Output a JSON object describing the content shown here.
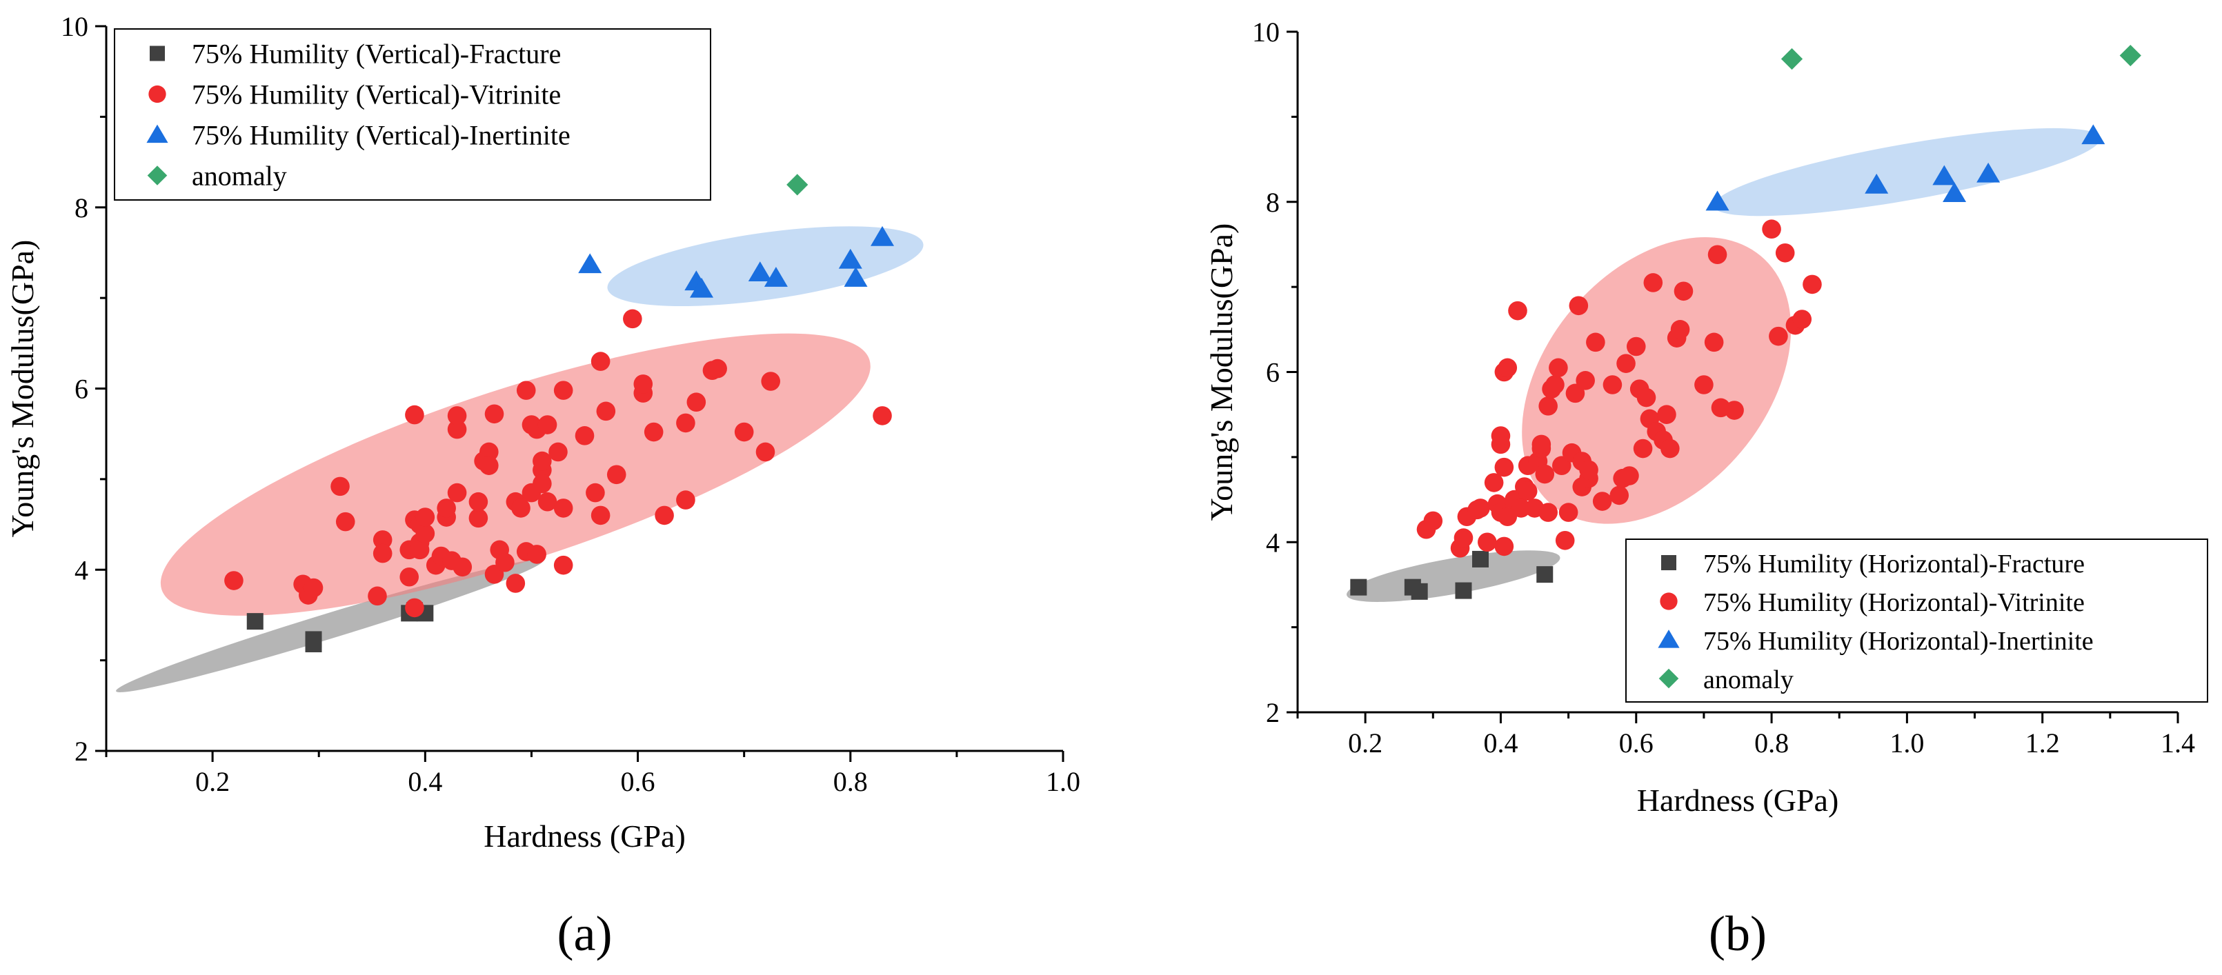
{
  "chart_data": [
    {
      "type": "scatter",
      "panel_label": "(a)",
      "xlabel": "Hardness (GPa)",
      "ylabel": "Young's Modulus(GPa)",
      "xlim": [
        0.1,
        1.0
      ],
      "ylim": [
        2,
        10
      ],
      "xticks": [
        0.2,
        0.4,
        0.6,
        0.8,
        1.0
      ],
      "xtick_labels": [
        "0.2",
        "0.4",
        "0.6",
        "0.8",
        "1.0"
      ],
      "yticks": [
        2,
        4,
        6,
        8,
        10
      ],
      "ytick_labels": [
        "2",
        "4",
        "6",
        "8",
        "10"
      ],
      "legend_position": "top-left",
      "series": [
        {
          "name": "75% Humility (Vertical)-Fracture",
          "marker": "square",
          "color": "#404040",
          "x": [
            0.24,
            0.295,
            0.295,
            0.385,
            0.39,
            0.4
          ],
          "y": [
            3.43,
            3.18,
            3.23,
            3.52,
            3.55,
            3.52
          ]
        },
        {
          "name": "75% Humility (Vertical)-Vitrinite",
          "marker": "circle",
          "color": "#ef2b2d",
          "x": [
            0.22,
            0.285,
            0.29,
            0.295,
            0.32,
            0.325,
            0.355,
            0.36,
            0.36,
            0.385,
            0.385,
            0.39,
            0.39,
            0.39,
            0.395,
            0.395,
            0.395,
            0.4,
            0.4,
            0.41,
            0.415,
            0.42,
            0.42,
            0.425,
            0.43,
            0.43,
            0.43,
            0.435,
            0.45,
            0.45,
            0.455,
            0.46,
            0.46,
            0.465,
            0.465,
            0.47,
            0.475,
            0.485,
            0.485,
            0.49,
            0.495,
            0.495,
            0.5,
            0.5,
            0.505,
            0.505,
            0.51,
            0.51,
            0.51,
            0.515,
            0.515,
            0.525,
            0.53,
            0.53,
            0.53,
            0.55,
            0.56,
            0.565,
            0.565,
            0.57,
            0.58,
            0.595,
            0.605,
            0.605,
            0.615,
            0.625,
            0.645,
            0.645,
            0.655,
            0.67,
            0.675,
            0.7,
            0.72,
            0.725,
            0.83
          ],
          "y": [
            3.88,
            3.84,
            3.72,
            3.8,
            4.92,
            4.53,
            3.71,
            4.33,
            4.18,
            3.92,
            4.22,
            3.58,
            4.55,
            5.71,
            4.3,
            4.22,
            4.5,
            4.4,
            4.58,
            4.05,
            4.15,
            4.58,
            4.68,
            4.1,
            4.85,
            5.55,
            5.7,
            4.03,
            4.57,
            4.75,
            5.2,
            5.3,
            5.15,
            3.95,
            5.72,
            4.22,
            4.08,
            3.85,
            4.75,
            4.68,
            5.98,
            4.2,
            4.85,
            5.6,
            5.55,
            4.17,
            5.1,
            4.95,
            5.2,
            5.6,
            4.75,
            5.3,
            5.98,
            4.05,
            4.68,
            5.48,
            4.85,
            6.3,
            4.6,
            5.75,
            5.05,
            6.77,
            5.95,
            6.05,
            5.52,
            4.6,
            4.77,
            5.62,
            5.85,
            6.2,
            6.22,
            5.52,
            5.3,
            6.08,
            5.7
          ]
        },
        {
          "name": "75% Humility (Vertical)-Inertinite",
          "marker": "triangle",
          "color": "#1a6fdf",
          "x": [
            0.555,
            0.655,
            0.66,
            0.715,
            0.73,
            0.8,
            0.805,
            0.83
          ],
          "y": [
            7.37,
            7.18,
            7.1,
            7.28,
            7.22,
            7.42,
            7.22,
            7.67
          ]
        },
        {
          "name": "anomaly",
          "marker": "diamond",
          "color": "#3aa76d",
          "x": [
            0.75
          ],
          "y": [
            8.25
          ]
        }
      ],
      "clusters": [
        {
          "name": "Fracture region",
          "color": "#808080",
          "cx": 0.31,
          "cy": 3.38,
          "rx": 0.21,
          "ry": 0.14,
          "angle_deg": -17
        },
        {
          "name": "Vitrinite region",
          "color": "#f47c7c",
          "cx": 0.485,
          "cy": 5.05,
          "rx": 0.35,
          "ry": 0.95,
          "angle_deg": -18
        },
        {
          "name": "Inertinite region",
          "color": "#9cc3ee",
          "cx": 0.72,
          "cy": 7.35,
          "rx": 0.15,
          "ry": 0.37,
          "angle_deg": -8
        }
      ]
    },
    {
      "type": "scatter",
      "panel_label": "(b)",
      "xlabel": "Hardness (GPa)",
      "ylabel": "Young's Modulus(GPa)",
      "xlim": [
        0.1,
        1.4
      ],
      "ylim": [
        2,
        10
      ],
      "xticks": [
        0.2,
        0.4,
        0.6,
        0.8,
        1.0,
        1.2,
        1.4
      ],
      "xtick_labels": [
        "0.2",
        "0.4",
        "0.6",
        "0.8",
        "1.0",
        "1.2",
        "1.4"
      ],
      "yticks": [
        2,
        4,
        6,
        8,
        10
      ],
      "ytick_labels": [
        "2",
        "4",
        "6",
        "8",
        "10"
      ],
      "legend_position": "bottom-right",
      "series": [
        {
          "name": "75% Humility (Horizontal)-Fracture",
          "marker": "square",
          "color": "#404040",
          "x": [
            0.19,
            0.27,
            0.28,
            0.345,
            0.37,
            0.465
          ],
          "y": [
            3.47,
            3.47,
            3.42,
            3.43,
            3.8,
            3.62
          ]
        },
        {
          "name": "75% Humility (Horizontal)-Vitrinite",
          "marker": "circle",
          "color": "#ef2b2d",
          "x": [
            0.29,
            0.3,
            0.34,
            0.345,
            0.35,
            0.365,
            0.37,
            0.38,
            0.39,
            0.395,
            0.4,
            0.4,
            0.4,
            0.405,
            0.405,
            0.405,
            0.41,
            0.41,
            0.42,
            0.425,
            0.43,
            0.435,
            0.44,
            0.44,
            0.45,
            0.455,
            0.46,
            0.46,
            0.465,
            0.47,
            0.47,
            0.475,
            0.48,
            0.485,
            0.49,
            0.495,
            0.5,
            0.505,
            0.51,
            0.515,
            0.52,
            0.52,
            0.525,
            0.53,
            0.53,
            0.54,
            0.55,
            0.565,
            0.575,
            0.58,
            0.585,
            0.59,
            0.6,
            0.605,
            0.61,
            0.615,
            0.62,
            0.625,
            0.63,
            0.64,
            0.645,
            0.65,
            0.66,
            0.665,
            0.67,
            0.7,
            0.715,
            0.72,
            0.725,
            0.745,
            0.8,
            0.81,
            0.82,
            0.835,
            0.845,
            0.86
          ],
          "y": [
            4.15,
            4.25,
            3.93,
            4.05,
            4.3,
            4.38,
            4.4,
            4.0,
            4.7,
            4.45,
            4.35,
            5.15,
            5.25,
            3.95,
            4.88,
            6.0,
            4.3,
            6.05,
            4.5,
            6.72,
            4.4,
            4.65,
            4.6,
            4.9,
            4.4,
            4.95,
            5.1,
            5.15,
            4.8,
            4.35,
            5.6,
            5.8,
            5.85,
            6.05,
            4.9,
            4.02,
            4.35,
            5.05,
            5.75,
            6.78,
            4.65,
            4.95,
            5.9,
            4.75,
            4.85,
            6.35,
            4.48,
            5.85,
            4.55,
            4.75,
            6.1,
            4.78,
            6.3,
            5.8,
            5.1,
            5.7,
            5.45,
            7.05,
            5.3,
            5.2,
            5.5,
            5.1,
            6.4,
            6.5,
            6.95,
            5.85,
            6.35,
            7.38,
            5.58,
            5.55,
            7.68,
            6.42,
            7.4,
            6.55,
            6.62,
            7.03
          ]
        },
        {
          "name": "75% Humility (Horizontal)-Inertinite",
          "marker": "triangle",
          "color": "#1a6fdf",
          "x": [
            0.72,
            0.955,
            1.055,
            1.07,
            1.12,
            1.275
          ],
          "y": [
            8.0,
            8.2,
            8.3,
            8.1,
            8.33,
            8.78
          ]
        },
        {
          "name": "anomaly",
          "marker": "diamond",
          "color": "#3aa76d",
          "x": [
            0.83,
            1.33
          ],
          "y": [
            9.68,
            9.72
          ]
        }
      ],
      "clusters": [
        {
          "name": "Fracture region",
          "color": "#808080",
          "cx": 0.33,
          "cy": 3.6,
          "rx": 0.16,
          "ry": 0.21,
          "angle_deg": -10
        },
        {
          "name": "Vitrinite region",
          "color": "#f47c7c",
          "cx": 0.63,
          "cy": 5.9,
          "rx": 0.24,
          "ry": 1.3,
          "angle_deg": -50
        },
        {
          "name": "Inertinite region",
          "color": "#9cc3ee",
          "cx": 1.0,
          "cy": 8.35,
          "rx": 0.29,
          "ry": 0.33,
          "angle_deg": -10
        }
      ]
    }
  ]
}
